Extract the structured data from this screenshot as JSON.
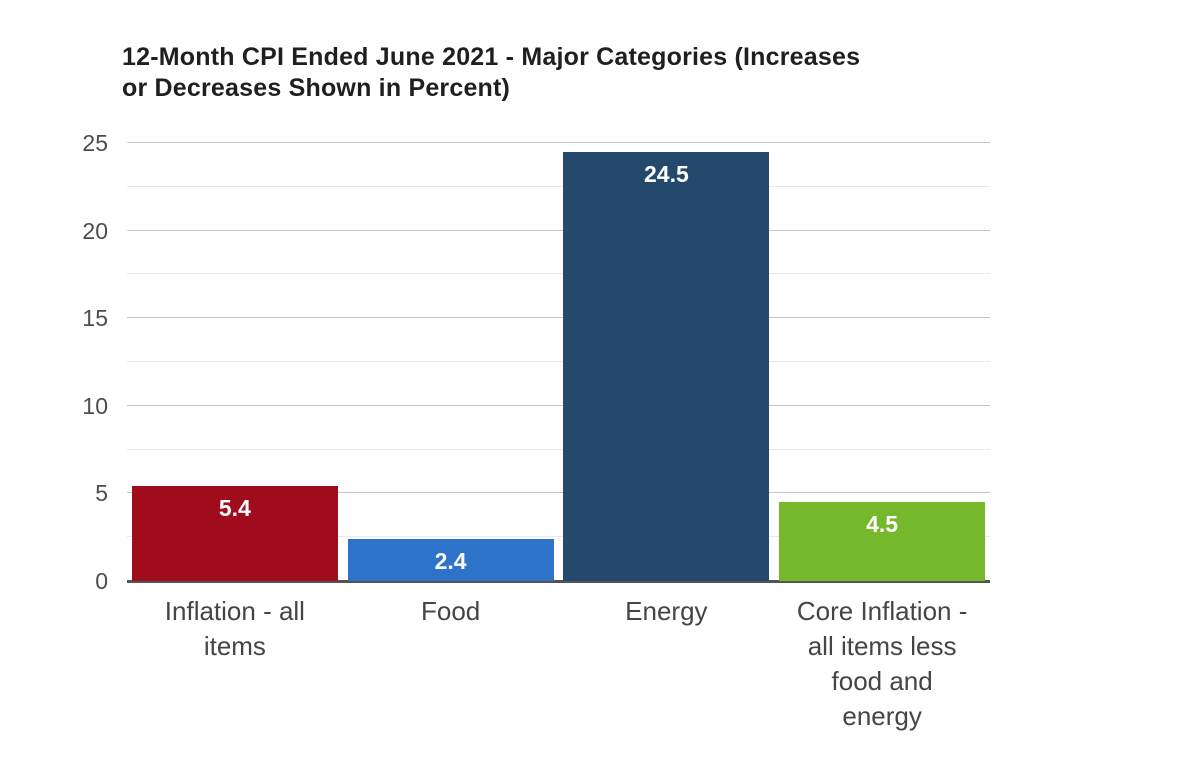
{
  "figure": {
    "title_display": "12-Month CPI Ended June 2021 - Major Categories (Increases\nor Decreases Shown in Percent)"
  },
  "chart_data": {
    "type": "bar",
    "title": "12-Month CPI Ended June 2021 - Major Categories (Increases or Decreases Shown in Percent)",
    "categories": [
      "Inflation - all items",
      "Food",
      "Energy",
      "Core Inflation - all items less food and energy"
    ],
    "category_labels_wrapped": [
      "Inflation - all\nitems",
      "Food",
      "Energy",
      "Core Inflation -\nall items less\nfood and\nenergy"
    ],
    "values": [
      5.4,
      2.4,
      24.5,
      4.5
    ],
    "value_labels": [
      "5.4",
      "2.4",
      "24.5",
      "4.5"
    ],
    "bar_colors": [
      "#a10c1c",
      "#2d73c9",
      "#24496c",
      "#76b82c"
    ],
    "xlabel": "",
    "ylabel": "",
    "ylim": [
      0,
      25
    ],
    "yticks": [
      0,
      5,
      10,
      15,
      20,
      25
    ],
    "minor_tick_step": 2.5,
    "grid": true,
    "legend": false,
    "colors": {
      "background": "#ffffff",
      "title_text": "#1f1f1f",
      "tick_label_text": "#4d4d4d",
      "category_label_text": "#454545",
      "value_label_text": "#ffffff",
      "major_gridline": "#c6c6c6",
      "minor_gridline": "#e9e9e9",
      "axis_line": "#545454"
    }
  }
}
